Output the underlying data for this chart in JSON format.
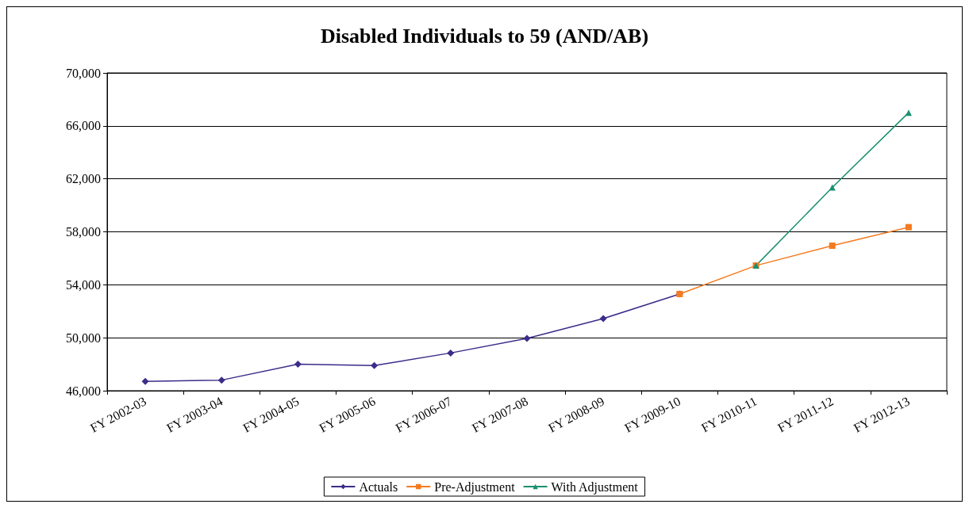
{
  "chart_data": {
    "type": "line",
    "title": "Disabled Individuals to 59 (AND/AB)",
    "categories": [
      "FY 2002-03",
      "FY 2003-04",
      "FY 2004-05",
      "FY 2005-06",
      "FY 2006-07",
      "FY 2007-08",
      "FY 2008-09",
      "FY 2009-10",
      "FY 2010-11",
      "FY 2011-12",
      "FY 2012-13"
    ],
    "series": [
      {
        "name": "Actuals",
        "color": "#3b2d8a",
        "marker": "diamond",
        "values": [
          46700,
          46800,
          48000,
          47900,
          48850,
          49950,
          51450,
          53300,
          null,
          null,
          null
        ]
      },
      {
        "name": "Pre-Adjustment",
        "color": "#f47b20",
        "marker": "square",
        "values": [
          null,
          null,
          null,
          null,
          null,
          null,
          null,
          53300,
          55450,
          56950,
          58350
        ]
      },
      {
        "name": "With Adjustment",
        "color": "#1a9070",
        "marker": "triangle",
        "values": [
          null,
          null,
          null,
          null,
          null,
          null,
          null,
          null,
          55450,
          61350,
          67000
        ]
      }
    ],
    "ylim": [
      46000,
      70000
    ],
    "yticks": [
      {
        "value": 46000,
        "label": "46,000"
      },
      {
        "value": 50000,
        "label": "50,000"
      },
      {
        "value": 54000,
        "label": "54,000"
      },
      {
        "value": 58000,
        "label": "58,000"
      },
      {
        "value": 62000,
        "label": "62,000"
      },
      {
        "value": 66000,
        "label": "66,000"
      },
      {
        "value": 70000,
        "label": "70,000"
      }
    ],
    "grid": "y",
    "legend": "bottom"
  }
}
